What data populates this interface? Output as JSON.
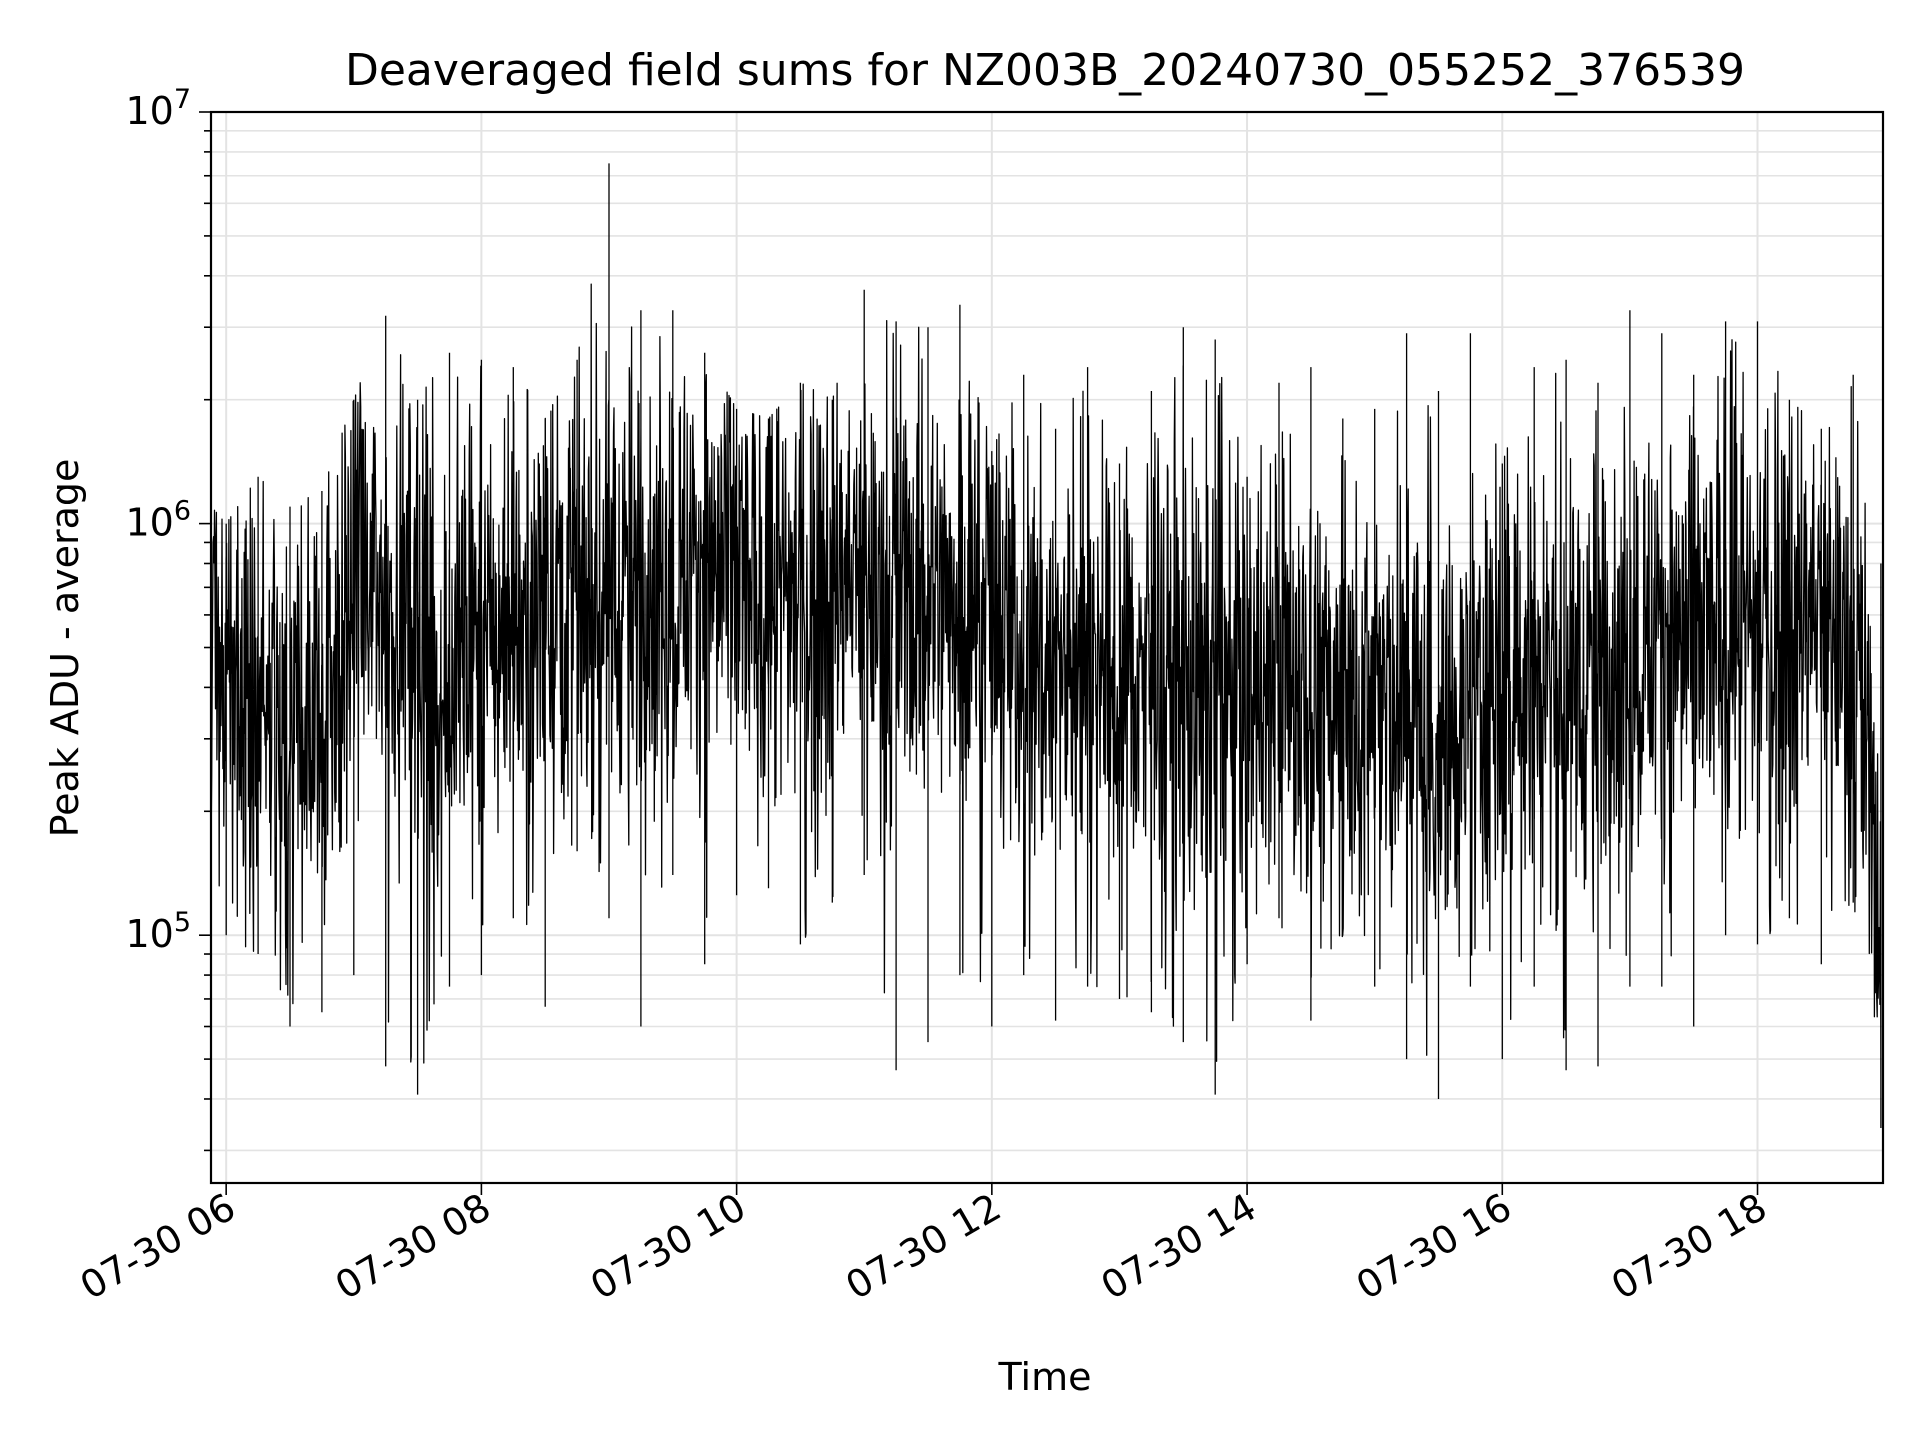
{
  "chart_data": {
    "type": "line",
    "title": "Deaveraged field sums for NZ003B_20240730_055252_376539",
    "xlabel": "Time",
    "ylabel": "Peak ADU - average",
    "x_tick_labels": [
      "07-30 06",
      "07-30 08",
      "07-30 10",
      "07-30 12",
      "07-30 14",
      "07-30 16",
      "07-30 18"
    ],
    "x_tick_values": [
      "2024-07-30T06:00",
      "2024-07-30T08:00",
      "2024-07-30T10:00",
      "2024-07-30T12:00",
      "2024-07-30T14:00",
      "2024-07-30T16:00",
      "2024-07-30T18:00"
    ],
    "xlim": [
      "2024-07-30T05:52:52",
      "2024-07-30T18:59:00"
    ],
    "y_scale": "log",
    "ylim": [
      25000,
      10000000
    ],
    "y_ticks": [
      {
        "base": "10",
        "exp": "5",
        "value": 100000
      },
      {
        "base": "10",
        "exp": "6",
        "value": 1000000
      },
      {
        "base": "10",
        "exp": "7",
        "value": 10000000
      }
    ],
    "grid": true,
    "line_color": "#000000",
    "series": [
      {
        "x": [
          "2024-07-30T05:53",
          "2024-07-30T06:00",
          "2024-07-30T06:15",
          "2024-07-30T06:30",
          "2024-07-30T06:45",
          "2024-07-30T07:00",
          "2024-07-30T07:15",
          "2024-07-30T07:30",
          "2024-07-30T07:45",
          "2024-07-30T08:00",
          "2024-07-30T08:15",
          "2024-07-30T08:30",
          "2024-07-30T08:45",
          "2024-07-30T09:00",
          "2024-07-30T09:15",
          "2024-07-30T09:30",
          "2024-07-30T09:45",
          "2024-07-30T10:00",
          "2024-07-30T10:15",
          "2024-07-30T10:30",
          "2024-07-30T10:45",
          "2024-07-30T11:00",
          "2024-07-30T11:15",
          "2024-07-30T11:30",
          "2024-07-30T11:45",
          "2024-07-30T12:00",
          "2024-07-30T12:15",
          "2024-07-30T12:30",
          "2024-07-30T12:45",
          "2024-07-30T13:00",
          "2024-07-30T13:15",
          "2024-07-30T13:30",
          "2024-07-30T13:45",
          "2024-07-30T14:00",
          "2024-07-30T14:15",
          "2024-07-30T14:30",
          "2024-07-30T14:45",
          "2024-07-30T15:00",
          "2024-07-30T15:15",
          "2024-07-30T15:30",
          "2024-07-30T15:45",
          "2024-07-30T16:00",
          "2024-07-30T16:15",
          "2024-07-30T16:30",
          "2024-07-30T16:45",
          "2024-07-30T17:00",
          "2024-07-30T17:15",
          "2024-07-30T17:30",
          "2024-07-30T17:45",
          "2024-07-30T18:00",
          "2024-07-30T18:15",
          "2024-07-30T18:30",
          "2024-07-30T18:45",
          "2024-07-30T18:58"
        ],
        "values": [
          600000,
          450000,
          350000,
          300000,
          400000,
          600000,
          700000,
          550000,
          400000,
          500000,
          600000,
          700000,
          650000,
          750000,
          700000,
          750000,
          800000,
          700000,
          650000,
          700000,
          700000,
          750000,
          700000,
          650000,
          700000,
          550000,
          500000,
          450000,
          400000,
          400000,
          450000,
          400000,
          350000,
          400000,
          450000,
          400000,
          350000,
          350000,
          350000,
          300000,
          350000,
          400000,
          450000,
          400000,
          450000,
          500000,
          550000,
          500000,
          550000,
          550000,
          600000,
          600000,
          550000,
          120000
        ],
        "min_values": [
          55000,
          100000,
          90000,
          60000,
          65000,
          80000,
          48000,
          41000,
          75000,
          80000,
          110000,
          67000,
          160000,
          110000,
          60000,
          140000,
          85000,
          125000,
          130000,
          95000,
          120000,
          140000,
          47000,
          55000,
          80000,
          60000,
          80000,
          62000,
          75000,
          70000,
          65000,
          55000,
          41000,
          85000,
          110000,
          62000,
          100000,
          75000,
          50000,
          40000,
          75000,
          50000,
          75000,
          47000,
          48000,
          75000,
          75000,
          60000,
          100000,
          95000,
          110000,
          85000,
          120000,
          34000
        ],
        "max_values": [
          1100000,
          1000000,
          1300000,
          1100000,
          1200000,
          2000000,
          3200000,
          2000000,
          2600000,
          2500000,
          2400000,
          1800000,
          2500000,
          7500000,
          3300000,
          3300000,
          2600000,
          1900000,
          1800000,
          2200000,
          2000000,
          3700000,
          3100000,
          3000000,
          3400000,
          1500000,
          2300000,
          1700000,
          2400000,
          1400000,
          2100000,
          3000000,
          2800000,
          1300000,
          2200000,
          2400000,
          1800000,
          1900000,
          2900000,
          2100000,
          2900000,
          1400000,
          2400000,
          2500000,
          2200000,
          3300000,
          2900000,
          2300000,
          3100000,
          3100000,
          2000000,
          1700000,
          2300000,
          800000
        ]
      }
    ]
  }
}
